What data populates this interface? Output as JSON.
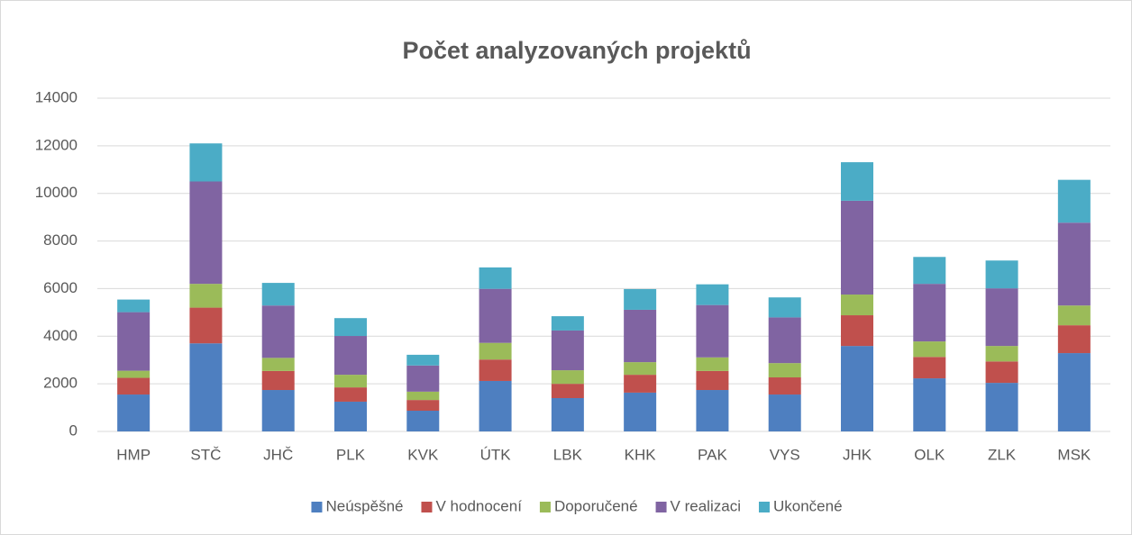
{
  "chart_data": {
    "type": "stacked_bar",
    "title": "Počet analyzovaných projektů",
    "categories": [
      "HMP",
      "STČ",
      "JHČ",
      "PLK",
      "KVK",
      "ÚTK",
      "LBK",
      "KHK",
      "PAK",
      "VYS",
      "JHK",
      "OLK",
      "ZLK",
      "MSK"
    ],
    "series": [
      {
        "name": "Neúspěšné",
        "color": "#4e7fc0",
        "values": [
          1550,
          3700,
          1740,
          1250,
          870,
          2120,
          1400,
          1630,
          1740,
          1550,
          3590,
          2230,
          2040,
          3290
        ]
      },
      {
        "name": "V hodnocení",
        "color": "#c0504d",
        "values": [
          700,
          1500,
          800,
          600,
          450,
          900,
          600,
          750,
          800,
          720,
          1290,
          900,
          900,
          1170
        ]
      },
      {
        "name": "Doporučené",
        "color": "#9bbb59",
        "values": [
          300,
          1000,
          550,
          530,
          350,
          700,
          570,
          530,
          570,
          600,
          870,
          650,
          650,
          830
        ]
      },
      {
        "name": "V realizaci",
        "color": "#8064a2",
        "values": [
          2460,
          4300,
          2200,
          1630,
          1100,
          2270,
          1670,
          2200,
          2200,
          1920,
          3940,
          2420,
          2420,
          3480
        ]
      },
      {
        "name": "Ukončené",
        "color": "#4bacc6",
        "values": [
          530,
          1600,
          950,
          750,
          450,
          900,
          600,
          870,
          870,
          840,
          1620,
          1130,
          1170,
          1800
        ]
      }
    ],
    "ylim": [
      0,
      14000
    ],
    "yticks": [
      0,
      2000,
      4000,
      6000,
      8000,
      10000,
      12000,
      14000
    ],
    "grid": true,
    "legend": "bottom"
  }
}
